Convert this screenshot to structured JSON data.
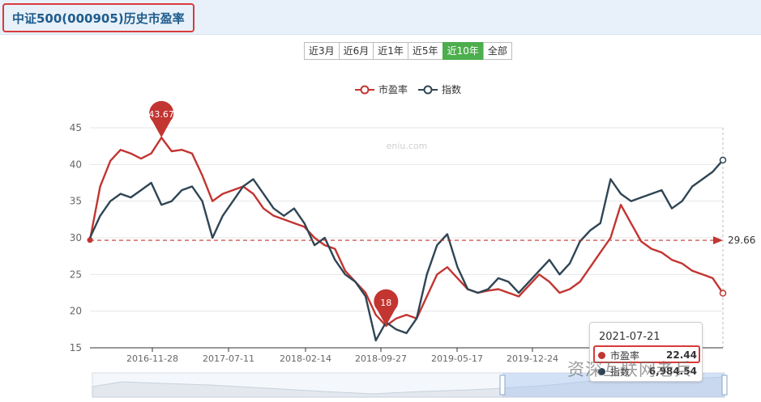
{
  "page": {
    "title": "中证500(000905)历史市盈率",
    "tabs": [
      {
        "label": "近3月",
        "active": false
      },
      {
        "label": "近6月",
        "active": false
      },
      {
        "label": "近1年",
        "active": false
      },
      {
        "label": "近5年",
        "active": false
      },
      {
        "label": "近10年",
        "active": true
      },
      {
        "label": "全部",
        "active": false
      }
    ],
    "watermark": "eniu.com",
    "overlay_text": "资深互联网老兵"
  },
  "tooltip": {
    "date": "2021-07-21",
    "rows": [
      {
        "label": "市盈率",
        "value": "22.44",
        "color": "#c23531"
      },
      {
        "label": "指数",
        "value": "6,984.54",
        "color": "#2f4554"
      }
    ]
  },
  "colors": {
    "pe": "#c23531",
    "index": "#2f4554",
    "accent_green": "#4cae4c",
    "highlight_red": "#d93a3a"
  },
  "chart_data": {
    "type": "line",
    "legend": [
      "市盈率",
      "指数"
    ],
    "legend_position": "top-center",
    "ylim": [
      15,
      45
    ],
    "yticks": [
      15,
      20,
      25,
      30,
      35,
      40,
      45
    ],
    "x_tick_labels": [
      "2016-11-28",
      "2017-07-11",
      "2018-02-14",
      "2018-09-27",
      "2019-05-17",
      "2019-12-24"
    ],
    "x": [
      "2016-05",
      "2016-06",
      "2016-07",
      "2016-08",
      "2016-09",
      "2016-10",
      "2016-11",
      "2016-12",
      "2017-01",
      "2017-02",
      "2017-03",
      "2017-04",
      "2017-05",
      "2017-06",
      "2017-07",
      "2017-08",
      "2017-09",
      "2017-10",
      "2017-11",
      "2017-12",
      "2018-01",
      "2018-02",
      "2018-03",
      "2018-04",
      "2018-05",
      "2018-06",
      "2018-07",
      "2018-08",
      "2018-09",
      "2018-10",
      "2018-11",
      "2018-12",
      "2019-01",
      "2019-02",
      "2019-03",
      "2019-04",
      "2019-05",
      "2019-06",
      "2019-07",
      "2019-08",
      "2019-09",
      "2019-10",
      "2019-11",
      "2019-12",
      "2020-01",
      "2020-02",
      "2020-03",
      "2020-04",
      "2020-05",
      "2020-06",
      "2020-07",
      "2020-08",
      "2020-09",
      "2020-10",
      "2020-11",
      "2020-12",
      "2021-01",
      "2021-02",
      "2021-03",
      "2021-04",
      "2021-05",
      "2021-06",
      "2021-07"
    ],
    "series": [
      {
        "name": "市盈率",
        "values": [
          29.7,
          37.0,
          40.5,
          42.0,
          41.5,
          40.8,
          41.5,
          43.67,
          41.8,
          42.0,
          41.5,
          38.5,
          35.0,
          36.0,
          36.5,
          37.0,
          36.0,
          34.0,
          33.0,
          32.5,
          32.0,
          31.5,
          30.0,
          29.0,
          28.5,
          25.5,
          24.0,
          22.5,
          19.5,
          18.0,
          19.0,
          19.5,
          19.0,
          22.0,
          25.0,
          26.0,
          24.5,
          23.0,
          22.5,
          22.8,
          23.0,
          22.5,
          22.0,
          23.5,
          25.0,
          24.0,
          22.5,
          23.0,
          24.0,
          26.0,
          28.0,
          30.0,
          34.5,
          32.0,
          29.5,
          28.5,
          28.0,
          27.0,
          26.5,
          25.5,
          25.0,
          24.5,
          22.44
        ]
      },
      {
        "name": "指数",
        "values": [
          30.0,
          33.0,
          35.0,
          36.0,
          35.5,
          36.5,
          37.5,
          34.5,
          35.0,
          36.5,
          37.0,
          35.0,
          30.0,
          33.0,
          35.0,
          37.0,
          38.0,
          36.0,
          34.0,
          33.0,
          34.0,
          32.0,
          29.0,
          30.0,
          27.0,
          25.0,
          24.0,
          22.0,
          16.0,
          18.5,
          17.5,
          17.0,
          19.0,
          25.0,
          29.0,
          30.5,
          26.0,
          23.0,
          22.5,
          23.0,
          24.5,
          24.0,
          22.5,
          24.0,
          25.5,
          27.0,
          25.0,
          26.5,
          29.5,
          31.0,
          32.0,
          38.0,
          36.0,
          35.0,
          35.5,
          36.0,
          36.5,
          34.0,
          35.0,
          37.0,
          38.0,
          39.0,
          40.6
        ]
      }
    ],
    "reference_line": {
      "value": 29.66,
      "label": "29.66"
    },
    "markers": [
      {
        "label": "43.67",
        "type": "max"
      },
      {
        "label": "18",
        "type": "min"
      }
    ]
  }
}
